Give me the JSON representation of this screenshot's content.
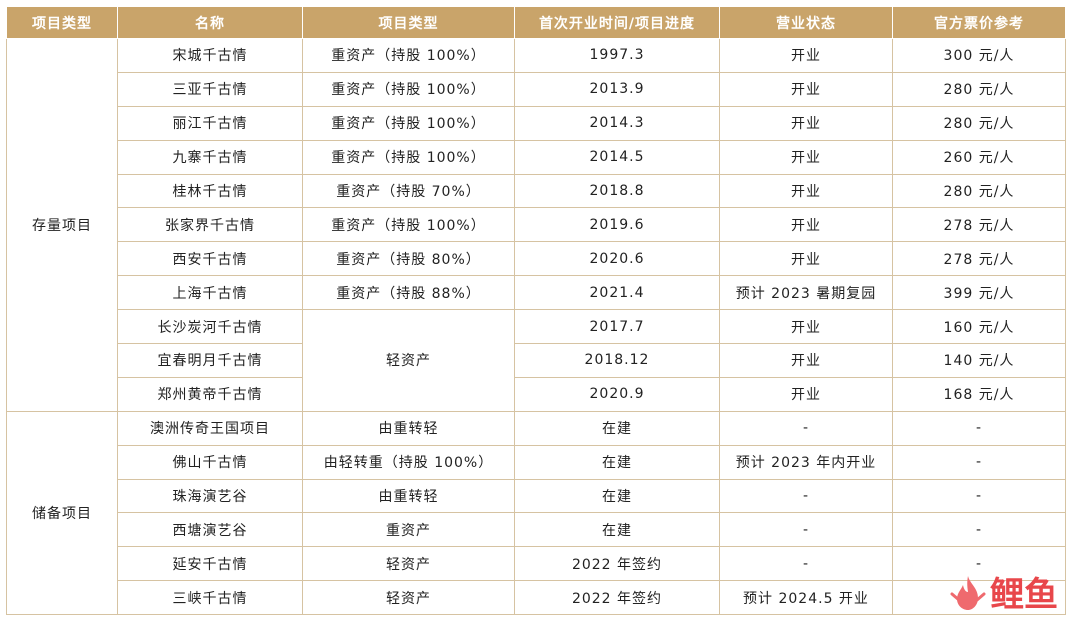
{
  "table": {
    "headers": [
      "项目类型",
      "名称",
      "项目类型",
      "首次开业时间/项目进度",
      "营业状态",
      "官方票价参考"
    ],
    "groups": [
      {
        "label": "存量项目",
        "rows": [
          {
            "name": "宋城千古情",
            "type": "重资产（持股 100%）",
            "time": "1997.3",
            "status": "开业",
            "price": "300 元/人"
          },
          {
            "name": "三亚千古情",
            "type": "重资产（持股 100%）",
            "time": "2013.9",
            "status": "开业",
            "price": "280 元/人"
          },
          {
            "name": "丽江千古情",
            "type": "重资产（持股 100%）",
            "time": "2014.3",
            "status": "开业",
            "price": "280 元/人"
          },
          {
            "name": "九寨千古情",
            "type": "重资产（持股 100%）",
            "time": "2014.5",
            "status": "开业",
            "price": "260 元/人"
          },
          {
            "name": "桂林千古情",
            "type": "重资产（持股 70%）",
            "time": "2018.8",
            "status": "开业",
            "price": "280 元/人"
          },
          {
            "name": "张家界千古情",
            "type": "重资产（持股 100%）",
            "time": "2019.6",
            "status": "开业",
            "price": "278 元/人"
          },
          {
            "name": "西安千古情",
            "type": "重资产（持股 80%）",
            "time": "2020.6",
            "status": "开业",
            "price": "278 元/人"
          },
          {
            "name": "上海千古情",
            "type": "重资产（持股 88%）",
            "time": "2021.4",
            "status": "预计 2023 暑期复园",
            "price": "399 元/人"
          },
          {
            "name": "长沙炭河千古情",
            "type": "轻资产",
            "time": "2017.7",
            "status": "开业",
            "price": "160 元/人"
          },
          {
            "name": "宜春明月千古情",
            "time": "2018.12",
            "status": "开业",
            "price": "140 元/人"
          },
          {
            "name": "郑州黄帝千古情",
            "time": "2020.9",
            "status": "开业",
            "price": "168 元/人"
          }
        ]
      },
      {
        "label": "储备项目",
        "rows": [
          {
            "name": "澳洲传奇王国项目",
            "type": "由重转轻",
            "time": "在建",
            "status": "-",
            "price": "-"
          },
          {
            "name": "佛山千古情",
            "type": "由轻转重（持股 100%）",
            "time": "在建",
            "status": "预计 2023 年内开业",
            "price": "-"
          },
          {
            "name": "珠海演艺谷",
            "type": "由重转轻",
            "time": "在建",
            "status": "-",
            "price": "-"
          },
          {
            "name": "西塘演艺谷",
            "type": "重资产",
            "time": "在建",
            "status": "-",
            "price": "-"
          },
          {
            "name": "延安千古情",
            "type": "轻资产",
            "time": "2022 年签约",
            "status": "-",
            "price": "-"
          },
          {
            "name": "三峡千古情",
            "type": "轻资产",
            "time": "2022 年签约",
            "status": "预计 2024.5 开业",
            "price": ""
          }
        ]
      }
    ]
  },
  "watermark": {
    "text": "鲤鱼",
    "icon": "fire-icon",
    "color": "#e8474b"
  },
  "colors": {
    "header_bg": "#c9a46a",
    "border": "#d6c3a2"
  }
}
